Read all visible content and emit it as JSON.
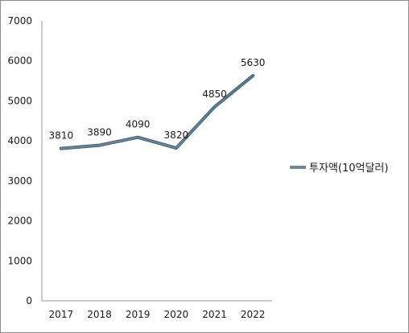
{
  "chart_data": {
    "type": "line",
    "categories": [
      "2017",
      "2018",
      "2019",
      "2020",
      "2021",
      "2022"
    ],
    "series": [
      {
        "name": "투자액(10억달러)",
        "values": [
          3810,
          3890,
          4090,
          3820,
          4850,
          5630
        ],
        "color": "#6c8a9c"
      }
    ],
    "data_labels": [
      "3810",
      "3890",
      "4090",
      "3820",
      "4850",
      "5630"
    ],
    "y_ticks": [
      "0",
      "1000",
      "2000",
      "3000",
      "4000",
      "5000",
      "6000",
      "7000"
    ],
    "ylim": [
      0,
      7000
    ],
    "grid": false,
    "legend_position": "right"
  }
}
